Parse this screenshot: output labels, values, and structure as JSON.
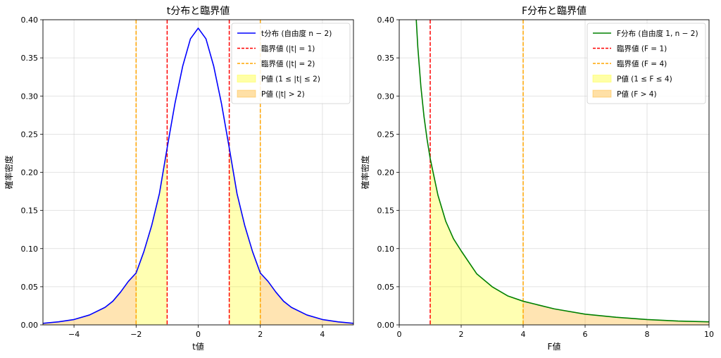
{
  "colors": {
    "t_curve": "#0000ff",
    "f_curve": "#008000",
    "crit1": "#ff0000",
    "crit2": "#ffa500",
    "p_between": "#ffff00",
    "p_tail": "#ffa500",
    "grid": "#b0b0b0"
  },
  "chart_data": [
    {
      "type": "area",
      "title": "t分布と臨界値",
      "xlabel": "t値",
      "ylabel": "確率密度",
      "xlim": [
        -5,
        5
      ],
      "ylim": [
        0,
        0.4
      ],
      "xticks": [
        -4,
        -2,
        0,
        2,
        4
      ],
      "xtick_labels": [
        "−4",
        "−2",
        "0",
        "2",
        "4"
      ],
      "yticks": [
        0,
        0.05,
        0.1,
        0.15,
        0.2,
        0.25,
        0.3,
        0.35,
        0.4
      ],
      "ytick_labels": [
        "0.00",
        "0.05",
        "0.10",
        "0.15",
        "0.20",
        "0.25",
        "0.30",
        "0.35",
        "0.40"
      ],
      "grid": true,
      "legend_position": "top-right",
      "curve": {
        "name": "t分布 (自由度 n − 2)",
        "x": [
          -5,
          -4.5,
          -4,
          -3.5,
          -3,
          -2.75,
          -2.5,
          -2.25,
          -2,
          -1.75,
          -1.5,
          -1.25,
          -1,
          -0.75,
          -0.5,
          -0.25,
          0,
          0.25,
          0.5,
          0.75,
          1,
          1.25,
          1.5,
          1.75,
          2,
          2.25,
          2.5,
          2.75,
          3,
          3.5,
          4,
          4.5,
          5
        ],
        "y": [
          0.002,
          0.004,
          0.007,
          0.013,
          0.023,
          0.031,
          0.043,
          0.057,
          0.068,
          0.096,
          0.13,
          0.172,
          0.232,
          0.29,
          0.339,
          0.375,
          0.389,
          0.375,
          0.339,
          0.29,
          0.232,
          0.172,
          0.13,
          0.096,
          0.068,
          0.057,
          0.043,
          0.031,
          0.023,
          0.013,
          0.007,
          0.004,
          0.002
        ]
      },
      "critical_lines": [
        {
          "name": "臨界値 (|t| = 1)",
          "x": [
            -1,
            1
          ],
          "color_key": "crit1"
        },
        {
          "name": "臨界値 (|t| = 2)",
          "x": [
            -2,
            2
          ],
          "color_key": "crit2"
        }
      ],
      "fills": [
        {
          "name": "P値 (1 ≤ |t| ≤ 2)",
          "ranges": [
            [
              -2,
              -1
            ],
            [
              1,
              2
            ]
          ],
          "color_key": "p_between"
        },
        {
          "name": "P値 (|t| > 2)",
          "ranges": [
            [
              -5,
              -2
            ],
            [
              2,
              5
            ]
          ],
          "color_key": "p_tail"
        }
      ]
    },
    {
      "type": "area",
      "title": "F分布と臨界値",
      "xlabel": "F値",
      "ylabel": "確率密度",
      "xlim": [
        0,
        10
      ],
      "ylim": [
        0,
        0.4
      ],
      "xticks": [
        0,
        2,
        4,
        6,
        8,
        10
      ],
      "xtick_labels": [
        "0",
        "2",
        "4",
        "6",
        "8",
        "10"
      ],
      "yticks": [
        0,
        0.05,
        0.1,
        0.15,
        0.2,
        0.25,
        0.3,
        0.35,
        0.4
      ],
      "ytick_labels": [
        "0.00",
        "0.05",
        "0.10",
        "0.15",
        "0.20",
        "0.25",
        "0.30",
        "0.35",
        "0.40"
      ],
      "grid": true,
      "legend_position": "top-right",
      "curve": {
        "name": "F分布 (自由度 1, n − 2)",
        "x": [
          0.55,
          0.6,
          0.7,
          0.8,
          0.9,
          1.0,
          1.25,
          1.5,
          1.75,
          2.0,
          2.5,
          3.0,
          3.5,
          4.0,
          5.0,
          6.0,
          7.0,
          8.0,
          9.0,
          10.0
        ],
        "y": [
          0.4,
          0.364,
          0.312,
          0.273,
          0.243,
          0.218,
          0.17,
          0.136,
          0.113,
          0.097,
          0.067,
          0.05,
          0.038,
          0.031,
          0.021,
          0.014,
          0.01,
          0.007,
          0.005,
          0.004
        ]
      },
      "critical_lines": [
        {
          "name": "臨界値 (F = 1)",
          "x": [
            1
          ],
          "color_key": "crit1"
        },
        {
          "name": "臨界値 (F = 4)",
          "x": [
            4
          ],
          "color_key": "crit2"
        }
      ],
      "fills": [
        {
          "name": "P値 (1 ≤ F ≤ 4)",
          "ranges": [
            [
              1,
              4
            ]
          ],
          "color_key": "p_between"
        },
        {
          "name": "P値 (F > 4)",
          "ranges": [
            [
              4,
              10
            ]
          ],
          "color_key": "p_tail"
        }
      ]
    }
  ]
}
